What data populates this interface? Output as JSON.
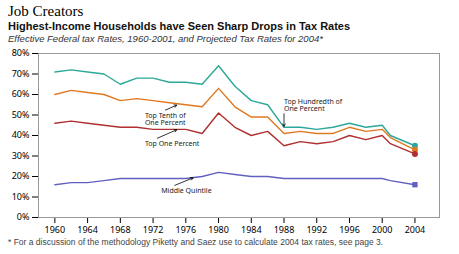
{
  "chart_data": {
    "type": "line",
    "title": "Job Creators",
    "chart_title": "Highest-Income Households have Seen Sharp Drops in Tax Rates",
    "subtitle": "Effective Federal tax Rates, 1960-2001, and Projected Tax Rates for 2004*",
    "footnote": "* For a discussion of the methodology Piketty and Saez use to calculate 2004 tax rates, see page 3.",
    "x": [
      1960,
      1962,
      1964,
      1966,
      1968,
      1970,
      1972,
      1974,
      1976,
      1978,
      1980,
      1982,
      1984,
      1986,
      1988,
      1990,
      1992,
      1994,
      1996,
      1998,
      2000,
      2001,
      2004
    ],
    "series": [
      {
        "color": "#2ca89a",
        "values": [
          71,
          72,
          71,
          70,
          65,
          68,
          68,
          66,
          66,
          65,
          74,
          64,
          57,
          55,
          44,
          44,
          43,
          44,
          46,
          44,
          45,
          40,
          35
        ],
        "dot": {
          "x": 2004,
          "y": 35,
          "marker": "circle"
        }
      },
      {
        "color": "#e07820",
        "values": [
          60,
          62,
          61,
          60,
          57,
          58,
          57,
          56,
          55,
          54,
          63,
          54,
          49,
          49,
          41,
          42,
          41,
          41,
          44,
          42,
          43,
          39,
          33
        ],
        "dot": {
          "x": 2004,
          "y": 33,
          "marker": "circle"
        }
      },
      {
        "color": "#b03030",
        "values": [
          46,
          47,
          46,
          45,
          44,
          44,
          43,
          43,
          43,
          41,
          51,
          44,
          40,
          42,
          35,
          37,
          36,
          37,
          40,
          38,
          40,
          36,
          31
        ],
        "dot": {
          "x": 2004,
          "y": 31,
          "marker": "circle"
        }
      },
      {
        "color": "#6060c0",
        "values": [
          16,
          17,
          17,
          18,
          19,
          19,
          19,
          19,
          19,
          20,
          22,
          21,
          20,
          20,
          19,
          19,
          19,
          19,
          19,
          19,
          19,
          18,
          16
        ],
        "dot": {
          "x": 2004,
          "y": 16,
          "marker": "square"
        }
      }
    ],
    "annotations": [
      {
        "text": "Top Tenth of\nOne Percent",
        "x": 1975,
        "y": 55,
        "text_x": 1971,
        "text_y": 48
      },
      {
        "text": "Top Hundredth of\nOne Percent",
        "x": 1988,
        "y": 44,
        "text_x": 1988,
        "text_y": 55
      },
      {
        "text": "Top One Percent",
        "x": 1975,
        "y": 43,
        "text_x": 1971,
        "text_y": 36
      },
      {
        "text": "Middle Quintile",
        "x": 1977,
        "y": 19.5,
        "text_x": 1973,
        "text_y": 13
      }
    ],
    "xlim": [
      1958,
      2007
    ],
    "xticks": [
      1960,
      1964,
      1968,
      1972,
      1976,
      1980,
      1984,
      1988,
      1992,
      1996,
      2000,
      2004
    ],
    "ylim": [
      0,
      80
    ],
    "yticks": [
      {
        "value": 0,
        "label": "0%"
      },
      {
        "value": 10,
        "label": "10%"
      },
      {
        "value": 20,
        "label": "20%"
      },
      {
        "value": 30,
        "label": "30%"
      },
      {
        "value": 40,
        "label": "40%"
      },
      {
        "value": 50,
        "label": "50%"
      },
      {
        "value": 60,
        "label": "60%"
      },
      {
        "value": 70,
        "label": "70%"
      },
      {
        "value": 80,
        "label": "80%"
      }
    ],
    "grid": false
  }
}
